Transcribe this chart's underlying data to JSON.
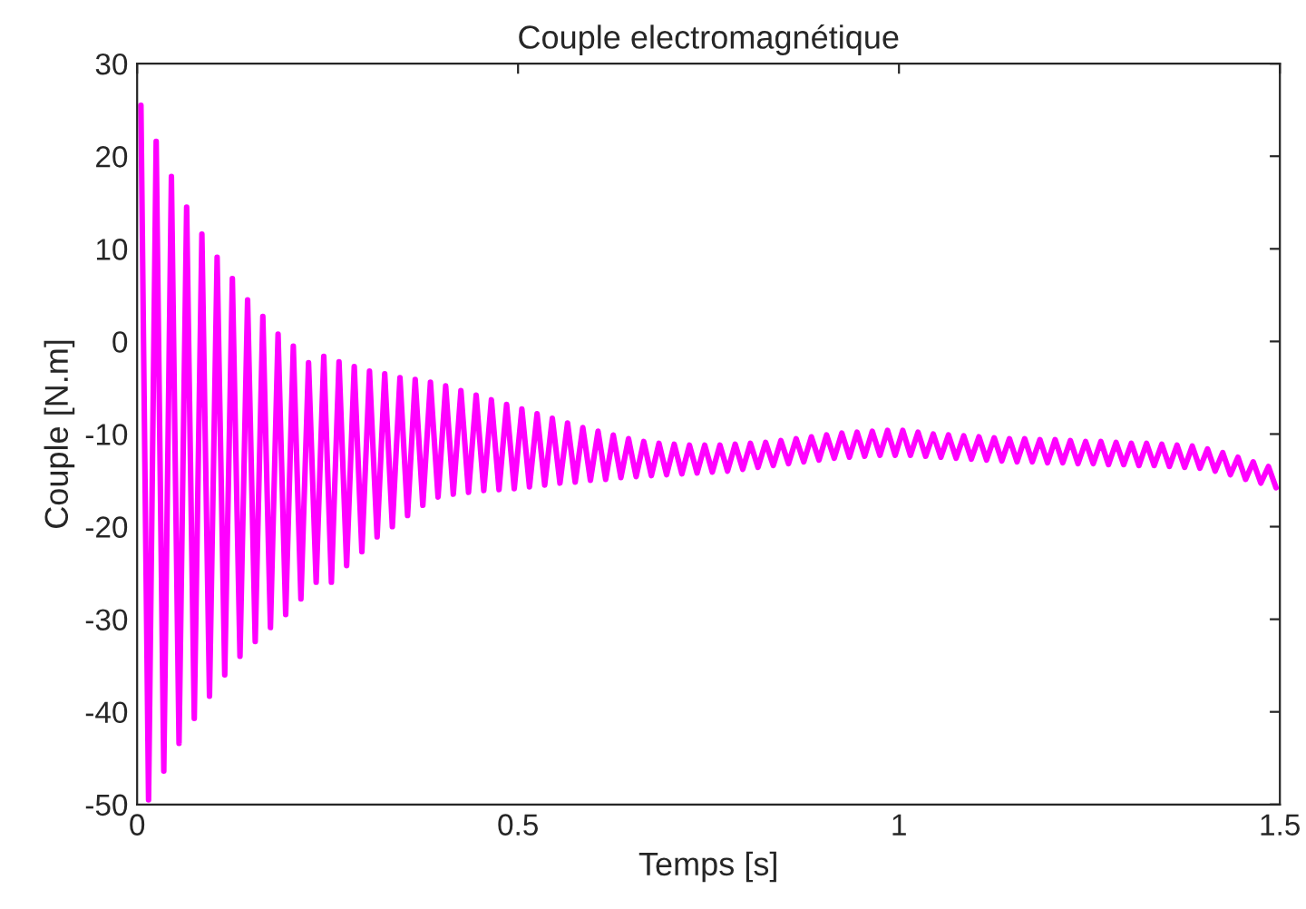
{
  "chart_data": {
    "type": "line",
    "title": "Couple electromagnétique",
    "xlabel": "Temps [s]",
    "ylabel": "Couple [N.m]",
    "xlim": [
      0,
      1.5
    ],
    "xticks": [
      0,
      0.5,
      1,
      1.5
    ],
    "ylim": [
      -50,
      30
    ],
    "yticks": [
      -50,
      -40,
      -30,
      -20,
      -10,
      0,
      10,
      20,
      30
    ],
    "grid": false,
    "series": [
      {
        "color": "#ff00ff",
        "x": [
          0.005,
          0.015,
          0.025,
          0.035,
          0.045,
          0.055,
          0.065,
          0.075,
          0.085,
          0.095,
          0.105,
          0.115,
          0.125,
          0.135,
          0.145,
          0.155,
          0.165,
          0.175,
          0.185,
          0.195,
          0.205,
          0.215,
          0.225,
          0.235,
          0.245,
          0.255,
          0.265,
          0.275,
          0.285,
          0.295,
          0.305,
          0.315,
          0.325,
          0.335,
          0.345,
          0.355,
          0.365,
          0.375,
          0.385,
          0.395,
          0.405,
          0.415,
          0.425,
          0.435,
          0.445,
          0.455,
          0.465,
          0.475,
          0.485,
          0.495,
          0.505,
          0.515,
          0.525,
          0.535,
          0.545,
          0.555,
          0.565,
          0.575,
          0.585,
          0.595,
          0.605,
          0.615,
          0.625,
          0.635,
          0.645,
          0.655,
          0.665,
          0.675,
          0.685,
          0.695,
          0.705,
          0.715,
          0.725,
          0.735,
          0.745,
          0.755,
          0.765,
          0.775,
          0.785,
          0.795,
          0.805,
          0.815,
          0.825,
          0.835,
          0.845,
          0.855,
          0.865,
          0.875,
          0.885,
          0.895,
          0.905,
          0.915,
          0.925,
          0.935,
          0.945,
          0.955,
          0.965,
          0.975,
          0.985,
          0.995,
          1.005,
          1.015,
          1.025,
          1.035,
          1.045,
          1.055,
          1.065,
          1.075,
          1.085,
          1.095,
          1.105,
          1.115,
          1.125,
          1.135,
          1.145,
          1.155,
          1.165,
          1.175,
          1.185,
          1.195,
          1.205,
          1.215,
          1.225,
          1.235,
          1.245,
          1.255,
          1.265,
          1.275,
          1.285,
          1.295,
          1.305,
          1.315,
          1.325,
          1.335,
          1.345,
          1.355,
          1.365,
          1.375,
          1.385,
          1.395,
          1.405,
          1.415,
          1.425,
          1.435,
          1.445,
          1.455,
          1.465,
          1.475,
          1.485,
          1.495
        ],
        "values": [
          25.5,
          -49.5,
          21.6,
          -46.4,
          17.8,
          -43.4,
          14.5,
          -40.7,
          11.6,
          -38.3,
          9.1,
          -36,
          6.8,
          -34,
          4.5,
          -32.4,
          2.7,
          -30.9,
          0.8,
          -29.5,
          -0.5,
          -27.8,
          -2.3,
          -26,
          -1.6,
          -26,
          -2.2,
          -24.2,
          -2.7,
          -22.7,
          -3.2,
          -21.1,
          -3.5,
          -20,
          -3.9,
          -18.8,
          -4.1,
          -17.7,
          -4.4,
          -16.8,
          -4.8,
          -16.5,
          -5.3,
          -16.3,
          -5.8,
          -16.1,
          -6.3,
          -16.0,
          -6.8,
          -15.9,
          -7.3,
          -15.7,
          -7.8,
          -15.5,
          -8.3,
          -15.3,
          -8.8,
          -15.2,
          -9.3,
          -15.0,
          -9.7,
          -14.9,
          -10.1,
          -14.7,
          -10.5,
          -14.6,
          -10.8,
          -14.5,
          -11.0,
          -14.4,
          -11.1,
          -14.3,
          -11.2,
          -14.2,
          -11.2,
          -14.1,
          -11.2,
          -14.0,
          -11.1,
          -13.8,
          -11.0,
          -13.6,
          -10.9,
          -13.4,
          -10.7,
          -13.2,
          -10.5,
          -13.0,
          -10.3,
          -12.8,
          -10.1,
          -12.6,
          -9.9,
          -12.5,
          -9.8,
          -12.4,
          -9.7,
          -12.3,
          -9.6,
          -12.3,
          -9.6,
          -12.3,
          -9.8,
          -12.4,
          -10.0,
          -12.5,
          -10.1,
          -12.6,
          -10.2,
          -12.7,
          -10.3,
          -12.8,
          -10.4,
          -12.9,
          -10.5,
          -13.0,
          -10.5,
          -13.0,
          -10.6,
          -13.1,
          -10.6,
          -13.1,
          -10.7,
          -13.2,
          -10.8,
          -13.2,
          -10.8,
          -13.3,
          -10.9,
          -13.3,
          -11.0,
          -13.4,
          -11.0,
          -13.4,
          -11.1,
          -13.5,
          -11.2,
          -13.6,
          -11.3,
          -13.7,
          -11.6,
          -14.0,
          -12.0,
          -14.4,
          -12.5,
          -14.9,
          -13.0,
          -15.3,
          -13.5,
          -15.8
        ]
      }
    ]
  }
}
